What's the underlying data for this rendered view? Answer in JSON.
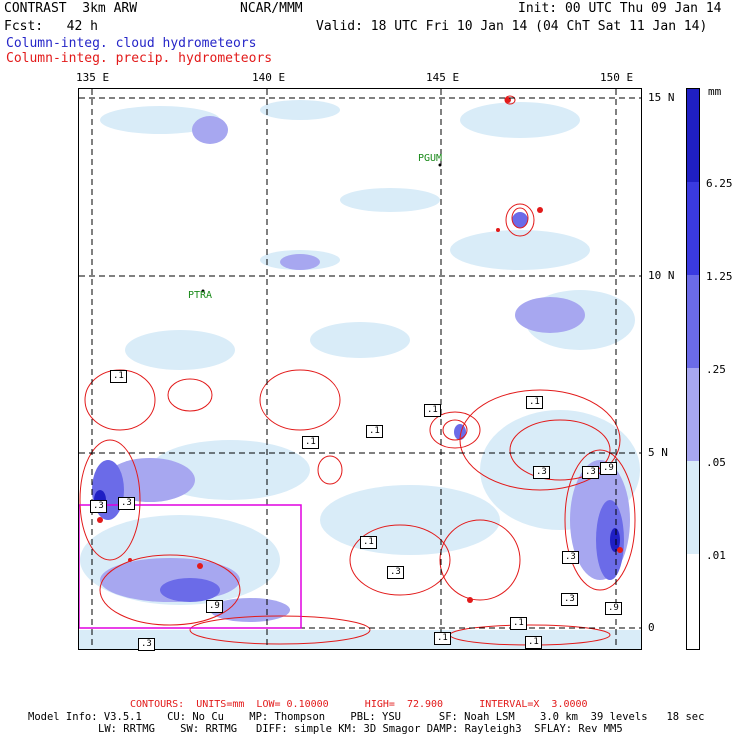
{
  "header": {
    "model": "CONTRAST  3km ARW",
    "center": "NCAR/MMM",
    "init": "Init: 00 UTC Thu 09 Jan 14",
    "fcst": "Fcst:   42 h",
    "valid": "Valid: 18 UTC Fri 10 Jan 14 (04 ChT Sat 11 Jan 14)",
    "field_cloud": "Column-integ. cloud hydrometeors",
    "field_precip": "Column-integ. precip. hydrometeors"
  },
  "axes": {
    "lon_labels": [
      "135 E",
      "140 E",
      "145 E",
      "150 E"
    ],
    "lat_labels": [
      "15 N",
      "10 N",
      "5 N",
      "0"
    ]
  },
  "places": {
    "guam": "PGUM",
    "palau": "PTRA"
  },
  "colorbar": {
    "unit": "mm",
    "ticks": [
      "6.25",
      "1.25",
      ".25",
      ".05",
      ".01"
    ],
    "colors": [
      "#1f1fc4",
      "#3a3ae0",
      "#6b6be8",
      "#a7a7f0",
      "#d9ecf8",
      "#ffffff"
    ]
  },
  "contour_labels": [
    ".1",
    ".1",
    ".1",
    ".1",
    ".1",
    ".3",
    ".3",
    ".3",
    ".1",
    ".3",
    ".9",
    ".3",
    ".1",
    ".3",
    ".3",
    ".9",
    ".1",
    ".3",
    ".1",
    ".9"
  ],
  "footer": {
    "contours": "CONTOURS:  UNITS=mm  LOW= 0.10000      HIGH=  72.900      INTERVAL=X  3.0000",
    "model_line1": "Model Info: V3.5.1    CU: No Cu    MP: Thompson    PBL: YSU      SF: Noah LSM    3.0 km  39 levels   18 sec",
    "model_line2": "LW: RRTMG    SW: RRTMG   DIFF: simple KM: 3D Smagor DAMP: Rayleigh3  SFLAY: Rev MM5"
  }
}
